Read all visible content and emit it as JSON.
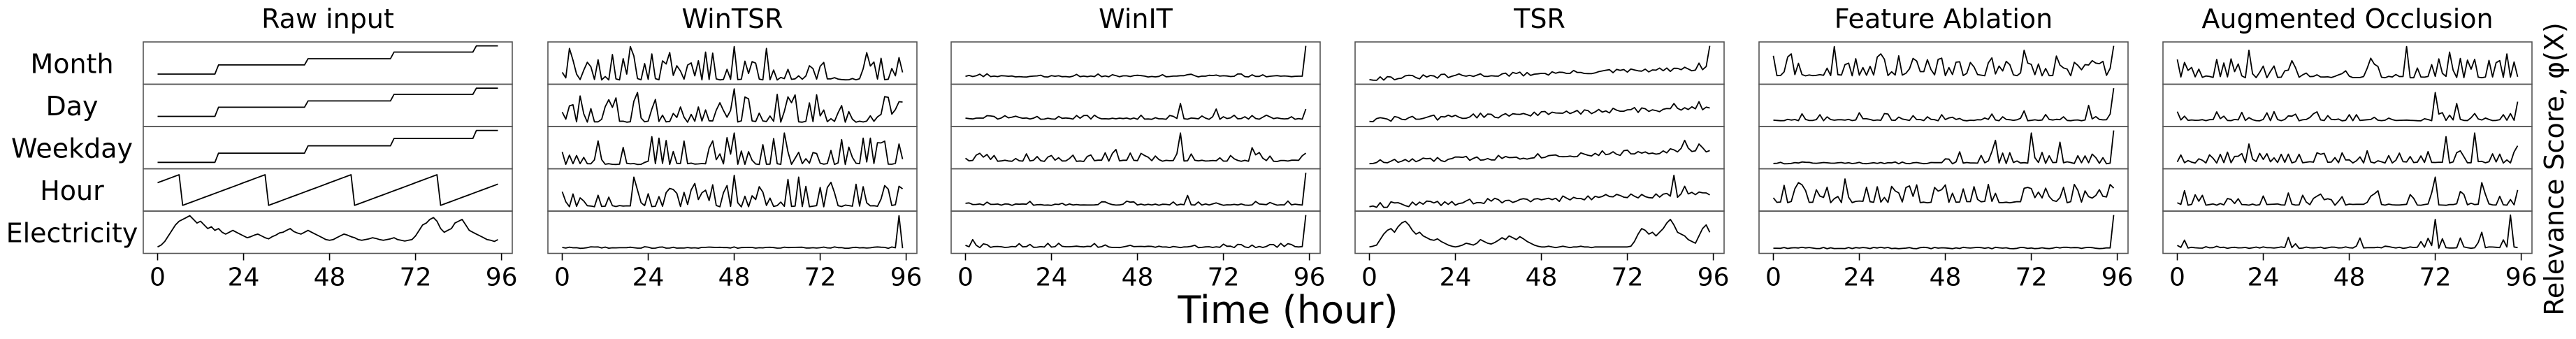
{
  "figure": {
    "xlabel": "Time (hour)",
    "right_label": "Relevance Score, φ(X)"
  },
  "chart_data": {
    "type": "line",
    "features": [
      "Month",
      "Day",
      "Weekday",
      "Hour",
      "Electricity"
    ],
    "x": {
      "min": 0,
      "max": 95,
      "ticks": [
        0,
        24,
        48,
        72,
        96
      ],
      "xlim": [
        -4,
        99
      ]
    },
    "panels": [
      {
        "title": "Raw input",
        "rows": {
          "Month": {
            "kind": "steps",
            "steps": [
              [
                0,
                0.2
              ],
              [
                17,
                0.45
              ],
              [
                42,
                0.62
              ],
              [
                66,
                0.8
              ],
              [
                89,
                0.97
              ]
            ]
          },
          "Day": {
            "kind": "steps",
            "steps": [
              [
                0,
                0.2
              ],
              [
                17,
                0.45
              ],
              [
                42,
                0.62
              ],
              [
                66,
                0.8
              ],
              [
                89,
                0.97
              ]
            ]
          },
          "Weekday": {
            "kind": "steps",
            "steps": [
              [
                0,
                0.1
              ],
              [
                17,
                0.35
              ],
              [
                42,
                0.55
              ],
              [
                66,
                0.75
              ],
              [
                89,
                0.97
              ]
            ]
          },
          "Hour": {
            "kind": "saw",
            "period": 24,
            "start_value": 0.3,
            "offset": 7,
            "low": 0.08,
            "high": 0.95
          },
          "Electricity": {
            "kind": "series",
            "values": [
              0.1,
              0.15,
              0.25,
              0.4,
              0.55,
              0.7,
              0.8,
              0.85,
              0.9,
              0.95,
              0.85,
              0.75,
              0.8,
              0.7,
              0.6,
              0.65,
              0.55,
              0.6,
              0.5,
              0.45,
              0.5,
              0.55,
              0.5,
              0.45,
              0.4,
              0.35,
              0.38,
              0.42,
              0.45,
              0.4,
              0.35,
              0.32,
              0.38,
              0.42,
              0.48,
              0.5,
              0.55,
              0.6,
              0.52,
              0.48,
              0.45,
              0.5,
              0.55,
              0.5,
              0.45,
              0.4,
              0.35,
              0.3,
              0.28,
              0.3,
              0.35,
              0.4,
              0.45,
              0.42,
              0.38,
              0.35,
              0.3,
              0.28,
              0.3,
              0.32,
              0.35,
              0.33,
              0.3,
              0.28,
              0.3,
              0.32,
              0.35,
              0.3,
              0.28,
              0.26,
              0.28,
              0.3,
              0.4,
              0.55,
              0.7,
              0.75,
              0.85,
              0.9,
              0.8,
              0.6,
              0.5,
              0.55,
              0.6,
              0.75,
              0.8,
              0.85,
              0.7,
              0.55,
              0.5,
              0.45,
              0.4,
              0.35,
              0.3,
              0.28,
              0.25,
              0.3
            ]
          }
        }
      },
      {
        "title": "WinTSR",
        "rows": {
          "Month": {
            "kind": "noise",
            "seed": 11,
            "base": 0.04,
            "density": 0.55,
            "amp": 0.75,
            "spikes": [
              [
                2,
                0.9
              ],
              [
                19,
                0.95
              ],
              [
                25,
                0.75
              ],
              [
                40,
                0.8
              ],
              [
                48,
                0.95
              ],
              [
                57,
                0.9
              ],
              [
                94,
                0.65
              ]
            ]
          },
          "Day": {
            "kind": "noise",
            "seed": 12,
            "base": 0.04,
            "density": 0.55,
            "amp": 0.75,
            "spikes": [
              [
                21,
                0.85
              ],
              [
                48,
                0.95
              ],
              [
                60,
                0.8
              ],
              [
                94,
                0.6
              ]
            ]
          },
          "Weekday": {
            "kind": "noise",
            "seed": 13,
            "base": 0.04,
            "density": 0.55,
            "amp": 0.75,
            "spikes": [
              [
                25,
                0.8
              ],
              [
                48,
                0.9
              ],
              [
                62,
                0.9
              ],
              [
                94,
                0.6
              ]
            ]
          },
          "Hour": {
            "kind": "noise",
            "seed": 14,
            "base": 0.04,
            "density": 0.55,
            "amp": 0.75,
            "spikes": [
              [
                20,
                0.85
              ],
              [
                48,
                0.9
              ],
              [
                66,
                0.85
              ],
              [
                94,
                0.6
              ]
            ]
          },
          "Electricity": {
            "kind": "noise",
            "seed": 15,
            "base": 0.06,
            "density": 0.06,
            "amp": 0.08,
            "spikes": [
              [
                94,
                0.95
              ]
            ]
          }
        }
      },
      {
        "title": "WinIT",
        "rows": {
          "Month": {
            "kind": "noise",
            "seed": 21,
            "base": 0.12,
            "density": 0.35,
            "amp": 0.1,
            "spikes": [
              [
                95,
                0.97
              ]
            ]
          },
          "Day": {
            "kind": "noise",
            "seed": 22,
            "base": 0.12,
            "density": 0.35,
            "amp": 0.12,
            "spikes": [
              [
                60,
                0.55
              ],
              [
                70,
                0.4
              ],
              [
                95,
                0.4
              ]
            ]
          },
          "Weekday": {
            "kind": "noise",
            "seed": 23,
            "base": 0.12,
            "density": 0.4,
            "amp": 0.25,
            "spikes": [
              [
                42,
                0.45
              ],
              [
                60,
                0.9
              ],
              [
                80,
                0.5
              ],
              [
                95,
                0.35
              ]
            ]
          },
          "Hour": {
            "kind": "noise",
            "seed": 24,
            "base": 0.08,
            "density": 0.35,
            "amp": 0.12,
            "spikes": [
              [
                62,
                0.35
              ],
              [
                95,
                0.97
              ]
            ]
          },
          "Electricity": {
            "kind": "noise",
            "seed": 25,
            "base": 0.08,
            "density": 0.3,
            "amp": 0.12,
            "spikes": [
              [
                2,
                0.3
              ],
              [
                95,
                0.97
              ]
            ]
          }
        }
      },
      {
        "title": "TSR",
        "rows": {
          "Month": {
            "kind": "trend",
            "seed": 31,
            "start": 0.08,
            "end": 0.35,
            "noise": 0.12,
            "spikes": [
              [
                92,
                0.5
              ],
              [
                95,
                0.97
              ]
            ]
          },
          "Day": {
            "kind": "trend",
            "seed": 32,
            "start": 0.1,
            "end": 0.45,
            "noise": 0.15,
            "spikes": [
              [
                85,
                0.55
              ],
              [
                92,
                0.6
              ]
            ]
          },
          "Weekday": {
            "kind": "trend",
            "seed": 33,
            "start": 0.1,
            "end": 0.45,
            "noise": 0.15,
            "spikes": [
              [
                88,
                0.7
              ],
              [
                92,
                0.6
              ]
            ]
          },
          "Hour": {
            "kind": "trend",
            "seed": 34,
            "start": 0.08,
            "end": 0.4,
            "noise": 0.15,
            "spikes": [
              [
                85,
                0.9
              ],
              [
                88,
                0.6
              ]
            ]
          },
          "Electricity": {
            "kind": "series",
            "values": [
              0.1,
              0.12,
              0.15,
              0.3,
              0.45,
              0.55,
              0.6,
              0.5,
              0.65,
              0.75,
              0.8,
              0.7,
              0.55,
              0.45,
              0.5,
              0.4,
              0.35,
              0.3,
              0.28,
              0.32,
              0.25,
              0.2,
              0.15,
              0.12,
              0.1,
              0.12,
              0.15,
              0.2,
              0.18,
              0.15,
              0.2,
              0.3,
              0.25,
              0.2,
              0.18,
              0.22,
              0.28,
              0.35,
              0.3,
              0.4,
              0.35,
              0.3,
              0.38,
              0.32,
              0.25,
              0.2,
              0.15,
              0.12,
              0.1,
              0.1,
              0.12,
              0.1,
              0.08,
              0.1,
              0.12,
              0.1,
              0.08,
              0.1,
              0.1,
              0.12,
              0.1,
              0.1,
              0.08,
              0.1,
              0.1,
              0.1,
              0.1,
              0.1,
              0.1,
              0.1,
              0.1,
              0.1,
              0.1,
              0.12,
              0.25,
              0.45,
              0.6,
              0.55,
              0.45,
              0.5,
              0.4,
              0.5,
              0.6,
              0.75,
              0.85,
              0.7,
              0.5,
              0.45,
              0.4,
              0.3,
              0.25,
              0.2,
              0.4,
              0.6,
              0.7,
              0.5
            ]
          }
        }
      },
      {
        "title": "Feature Ablation",
        "rows": {
          "Month": {
            "kind": "noise",
            "seed": 41,
            "base": 0.15,
            "density": 0.65,
            "amp": 0.55,
            "spikes": [
              [
                5,
                0.75
              ],
              [
                17,
                0.95
              ],
              [
                30,
                0.75
              ],
              [
                46,
                0.6
              ],
              [
                70,
                0.85
              ],
              [
                95,
                0.97
              ]
            ]
          },
          "Day": {
            "kind": "noise",
            "seed": 42,
            "base": 0.08,
            "density": 0.3,
            "amp": 0.2,
            "spikes": [
              [
                24,
                0.3
              ],
              [
                70,
                0.35
              ],
              [
                88,
                0.5
              ],
              [
                95,
                0.97
              ]
            ]
          },
          "Weekday": {
            "kind": "noise",
            "seed": 43,
            "base": 0.06,
            "density": 0.5,
            "amp": 0.35,
            "ramp_from": 45,
            "spikes": [
              [
                62,
                0.7
              ],
              [
                72,
                0.9
              ],
              [
                80,
                0.65
              ],
              [
                95,
                0.97
              ]
            ]
          },
          "Hour": {
            "kind": "noise",
            "seed": 44,
            "base": 0.15,
            "density": 0.6,
            "amp": 0.5,
            "spikes": [
              [
                7,
                0.7
              ],
              [
                20,
                0.8
              ],
              [
                60,
                0.65
              ],
              [
                95,
                0.55
              ]
            ]
          },
          "Electricity": {
            "kind": "noise",
            "seed": 45,
            "base": 0.05,
            "density": 0.0,
            "amp": 0.0,
            "spikes": [
              [
                95,
                0.97
              ]
            ]
          }
        }
      },
      {
        "title": "Augmented Occlusion",
        "rows": {
          "Month": {
            "kind": "noise",
            "seed": 51,
            "base": 0.1,
            "density": 0.6,
            "amp": 0.55,
            "spikes": [
              [
                20,
                0.85
              ],
              [
                64,
                0.95
              ],
              [
                76,
                0.8
              ],
              [
                92,
                0.75
              ]
            ]
          },
          "Day": {
            "kind": "noise",
            "seed": 52,
            "base": 0.08,
            "density": 0.35,
            "amp": 0.25,
            "spikes": [
              [
                72,
                0.85
              ],
              [
                78,
                0.55
              ],
              [
                95,
                0.6
              ]
            ]
          },
          "Weekday": {
            "kind": "noise",
            "seed": 53,
            "base": 0.08,
            "density": 0.45,
            "amp": 0.35,
            "spikes": [
              [
                20,
                0.6
              ],
              [
                75,
                0.8
              ],
              [
                83,
                0.9
              ],
              [
                95,
                0.55
              ]
            ]
          },
          "Hour": {
            "kind": "noise",
            "seed": 54,
            "base": 0.08,
            "density": 0.45,
            "amp": 0.4,
            "spikes": [
              [
                72,
                0.85
              ],
              [
                85,
                0.7
              ],
              [
                95,
                0.5
              ]
            ]
          },
          "Electricity": {
            "kind": "noise",
            "seed": 55,
            "base": 0.06,
            "density": 0.3,
            "amp": 0.3,
            "spikes": [
              [
                72,
                0.85
              ],
              [
                85,
                0.5
              ],
              [
                93,
                0.97
              ]
            ]
          }
        }
      }
    ],
    "grid": false,
    "line_color": "#000000"
  }
}
